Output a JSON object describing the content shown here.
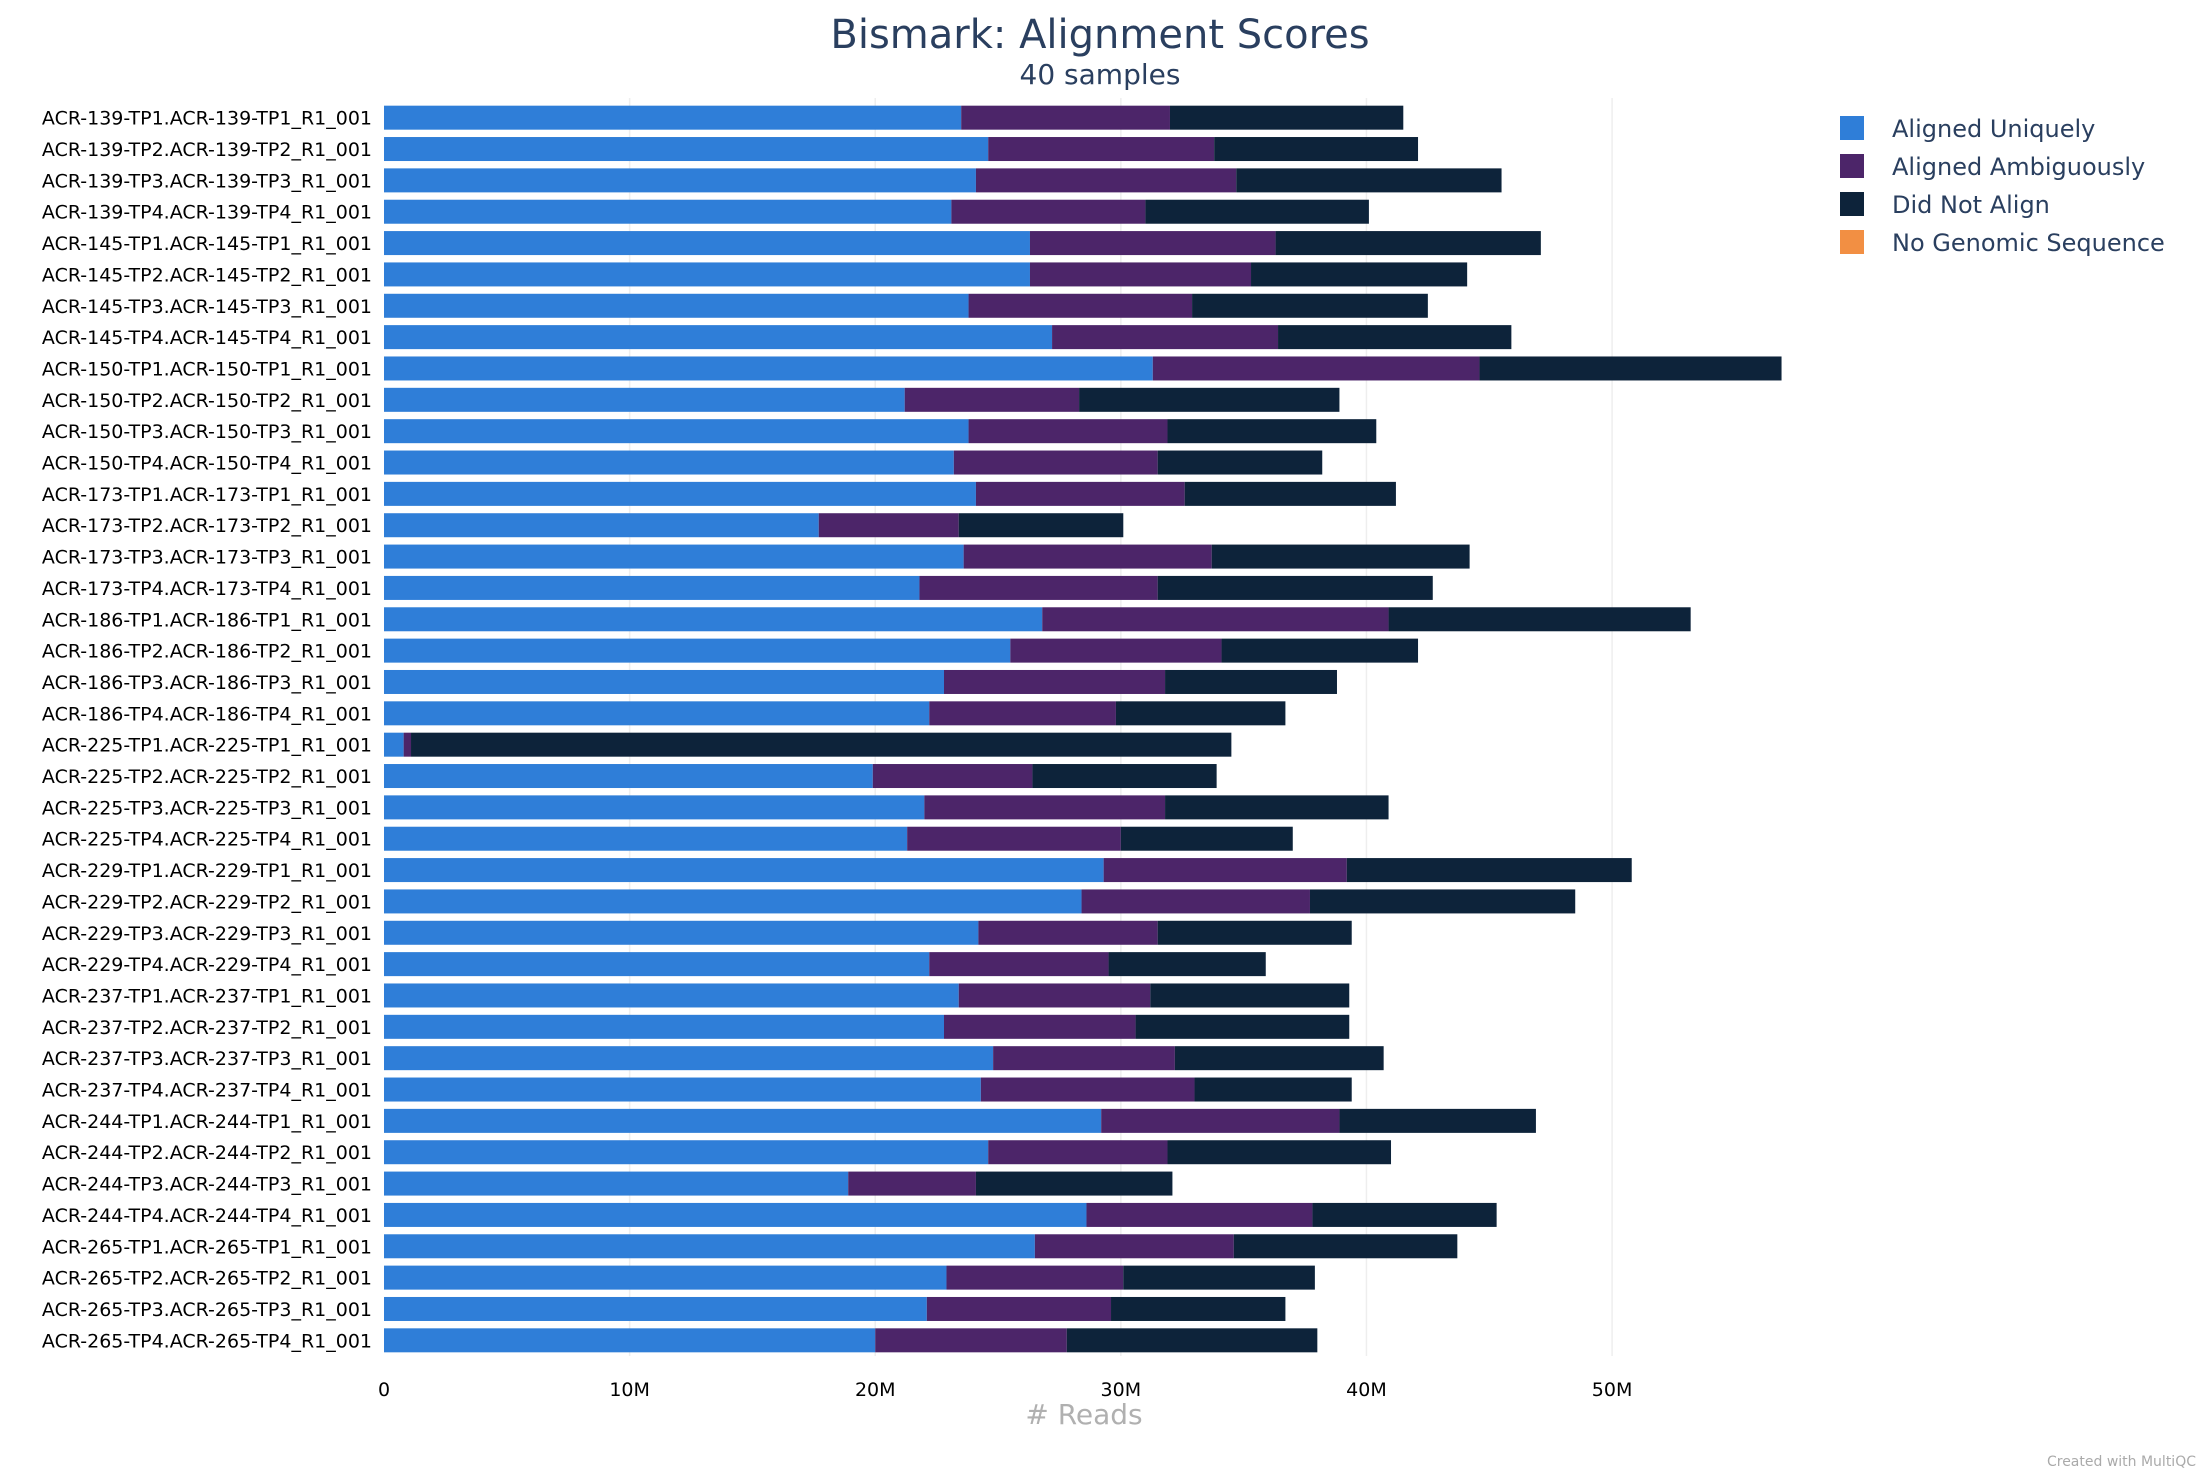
{
  "chart_data": {
    "type": "bar",
    "orientation": "horizontal",
    "stacked": true,
    "title": "Bismark: Alignment Scores",
    "subtitle": "40 samples",
    "xlabel": "# Reads",
    "xlim": [
      0,
      57000000
    ],
    "xticks": [
      {
        "value": 0,
        "label": "0"
      },
      {
        "value": 10000000,
        "label": "10M"
      },
      {
        "value": 20000000,
        "label": "20M"
      },
      {
        "value": 30000000,
        "label": "30M"
      },
      {
        "value": 40000000,
        "label": "40M"
      },
      {
        "value": 50000000,
        "label": "50M"
      }
    ],
    "grid": true,
    "legend_position": "top-right",
    "categories": [
      "ACR-139-TP1.ACR-139-TP1_R1_001",
      "ACR-139-TP2.ACR-139-TP2_R1_001",
      "ACR-139-TP3.ACR-139-TP3_R1_001",
      "ACR-139-TP4.ACR-139-TP4_R1_001",
      "ACR-145-TP1.ACR-145-TP1_R1_001",
      "ACR-145-TP2.ACR-145-TP2_R1_001",
      "ACR-145-TP3.ACR-145-TP3_R1_001",
      "ACR-145-TP4.ACR-145-TP4_R1_001",
      "ACR-150-TP1.ACR-150-TP1_R1_001",
      "ACR-150-TP2.ACR-150-TP2_R1_001",
      "ACR-150-TP3.ACR-150-TP3_R1_001",
      "ACR-150-TP4.ACR-150-TP4_R1_001",
      "ACR-173-TP1.ACR-173-TP1_R1_001",
      "ACR-173-TP2.ACR-173-TP2_R1_001",
      "ACR-173-TP3.ACR-173-TP3_R1_001",
      "ACR-173-TP4.ACR-173-TP4_R1_001",
      "ACR-186-TP1.ACR-186-TP1_R1_001",
      "ACR-186-TP2.ACR-186-TP2_R1_001",
      "ACR-186-TP3.ACR-186-TP3_R1_001",
      "ACR-186-TP4.ACR-186-TP4_R1_001",
      "ACR-225-TP1.ACR-225-TP1_R1_001",
      "ACR-225-TP2.ACR-225-TP2_R1_001",
      "ACR-225-TP3.ACR-225-TP3_R1_001",
      "ACR-225-TP4.ACR-225-TP4_R1_001",
      "ACR-229-TP1.ACR-229-TP1_R1_001",
      "ACR-229-TP2.ACR-229-TP2_R1_001",
      "ACR-229-TP3.ACR-229-TP3_R1_001",
      "ACR-229-TP4.ACR-229-TP4_R1_001",
      "ACR-237-TP1.ACR-237-TP1_R1_001",
      "ACR-237-TP2.ACR-237-TP2_R1_001",
      "ACR-237-TP3.ACR-237-TP3_R1_001",
      "ACR-237-TP4.ACR-237-TP4_R1_001",
      "ACR-244-TP1.ACR-244-TP1_R1_001",
      "ACR-244-TP2.ACR-244-TP2_R1_001",
      "ACR-244-TP3.ACR-244-TP3_R1_001",
      "ACR-244-TP4.ACR-244-TP4_R1_001",
      "ACR-265-TP1.ACR-265-TP1_R1_001",
      "ACR-265-TP2.ACR-265-TP2_R1_001",
      "ACR-265-TP3.ACR-265-TP3_R1_001",
      "ACR-265-TP4.ACR-265-TP4_R1_001"
    ],
    "series": [
      {
        "name": "Aligned Uniquely",
        "color": "#2f7ed8",
        "values": [
          23.5,
          24.6,
          24.1,
          23.1,
          26.3,
          26.3,
          23.8,
          27.2,
          31.3,
          21.2,
          23.8,
          23.2,
          24.1,
          17.7,
          23.6,
          21.8,
          26.8,
          25.5,
          22.8,
          22.2,
          0.8,
          19.9,
          22.0,
          21.3,
          29.3,
          28.4,
          24.2,
          22.2,
          23.4,
          22.8,
          24.8,
          24.3,
          29.2,
          24.6,
          18.9,
          28.6,
          26.5,
          22.9,
          22.1,
          20.0
        ]
      },
      {
        "name": "Aligned Ambiguously",
        "color": "#4c2569",
        "values": [
          8.5,
          9.2,
          10.6,
          7.9,
          10.0,
          9.0,
          9.1,
          9.2,
          13.3,
          7.1,
          8.1,
          8.3,
          8.5,
          5.7,
          10.1,
          9.7,
          14.1,
          8.6,
          9.0,
          7.6,
          0.3,
          6.5,
          9.8,
          8.7,
          9.9,
          9.3,
          7.3,
          7.3,
          7.8,
          7.8,
          7.4,
          8.7,
          9.7,
          7.3,
          5.2,
          9.2,
          8.1,
          7.2,
          7.5,
          7.8
        ]
      },
      {
        "name": "Did Not Align",
        "color": "#0d233a",
        "values": [
          9.5,
          8.3,
          10.8,
          9.1,
          10.8,
          8.8,
          9.6,
          9.5,
          12.3,
          10.6,
          8.5,
          6.7,
          8.6,
          6.7,
          10.5,
          11.2,
          12.3,
          8.0,
          7.0,
          6.9,
          33.4,
          7.5,
          9.1,
          7.0,
          11.6,
          10.8,
          7.9,
          6.4,
          8.1,
          8.7,
          8.5,
          6.4,
          8.0,
          9.1,
          8.0,
          7.5,
          9.1,
          7.8,
          7.1,
          10.2
        ]
      },
      {
        "name": "No Genomic Sequence",
        "color": "#f28f43",
        "values": [
          0,
          0,
          0,
          0,
          0,
          0,
          0,
          0,
          0,
          0,
          0,
          0,
          0,
          0,
          0,
          0,
          0,
          0,
          0,
          0,
          0,
          0,
          0,
          0,
          0,
          0,
          0,
          0,
          0,
          0,
          0,
          0,
          0,
          0,
          0,
          0,
          0,
          0,
          0,
          0
        ]
      }
    ],
    "value_unit_multiplier": 1000000,
    "credit": "Created with MultiQC"
  }
}
